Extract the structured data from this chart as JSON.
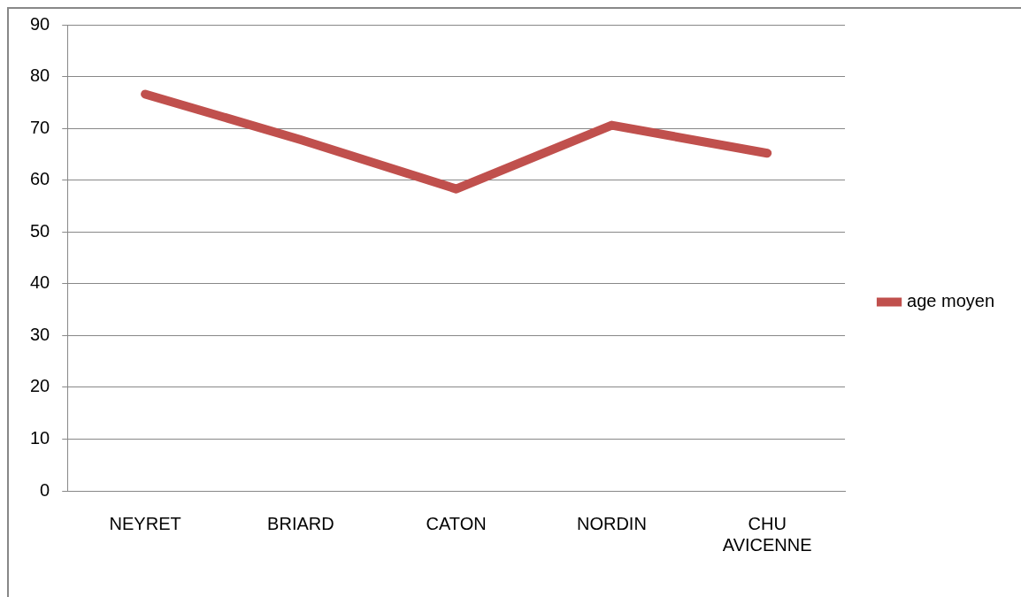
{
  "chart_data": {
    "type": "line",
    "categories": [
      "NEYRET",
      "BRIARD",
      "CATON",
      "NORDIN",
      "CHU AVICENNE"
    ],
    "series": [
      {
        "name": "age moyen",
        "color": "#c0504d",
        "values": [
          76.6,
          67.8,
          58.3,
          70.6,
          65.2
        ]
      }
    ],
    "ylim": [
      0,
      90
    ],
    "yticks": [
      0,
      10,
      20,
      30,
      40,
      50,
      60,
      70,
      80,
      90
    ],
    "grid": "y",
    "legend": "right",
    "marker": "none",
    "line_style": "solid"
  }
}
